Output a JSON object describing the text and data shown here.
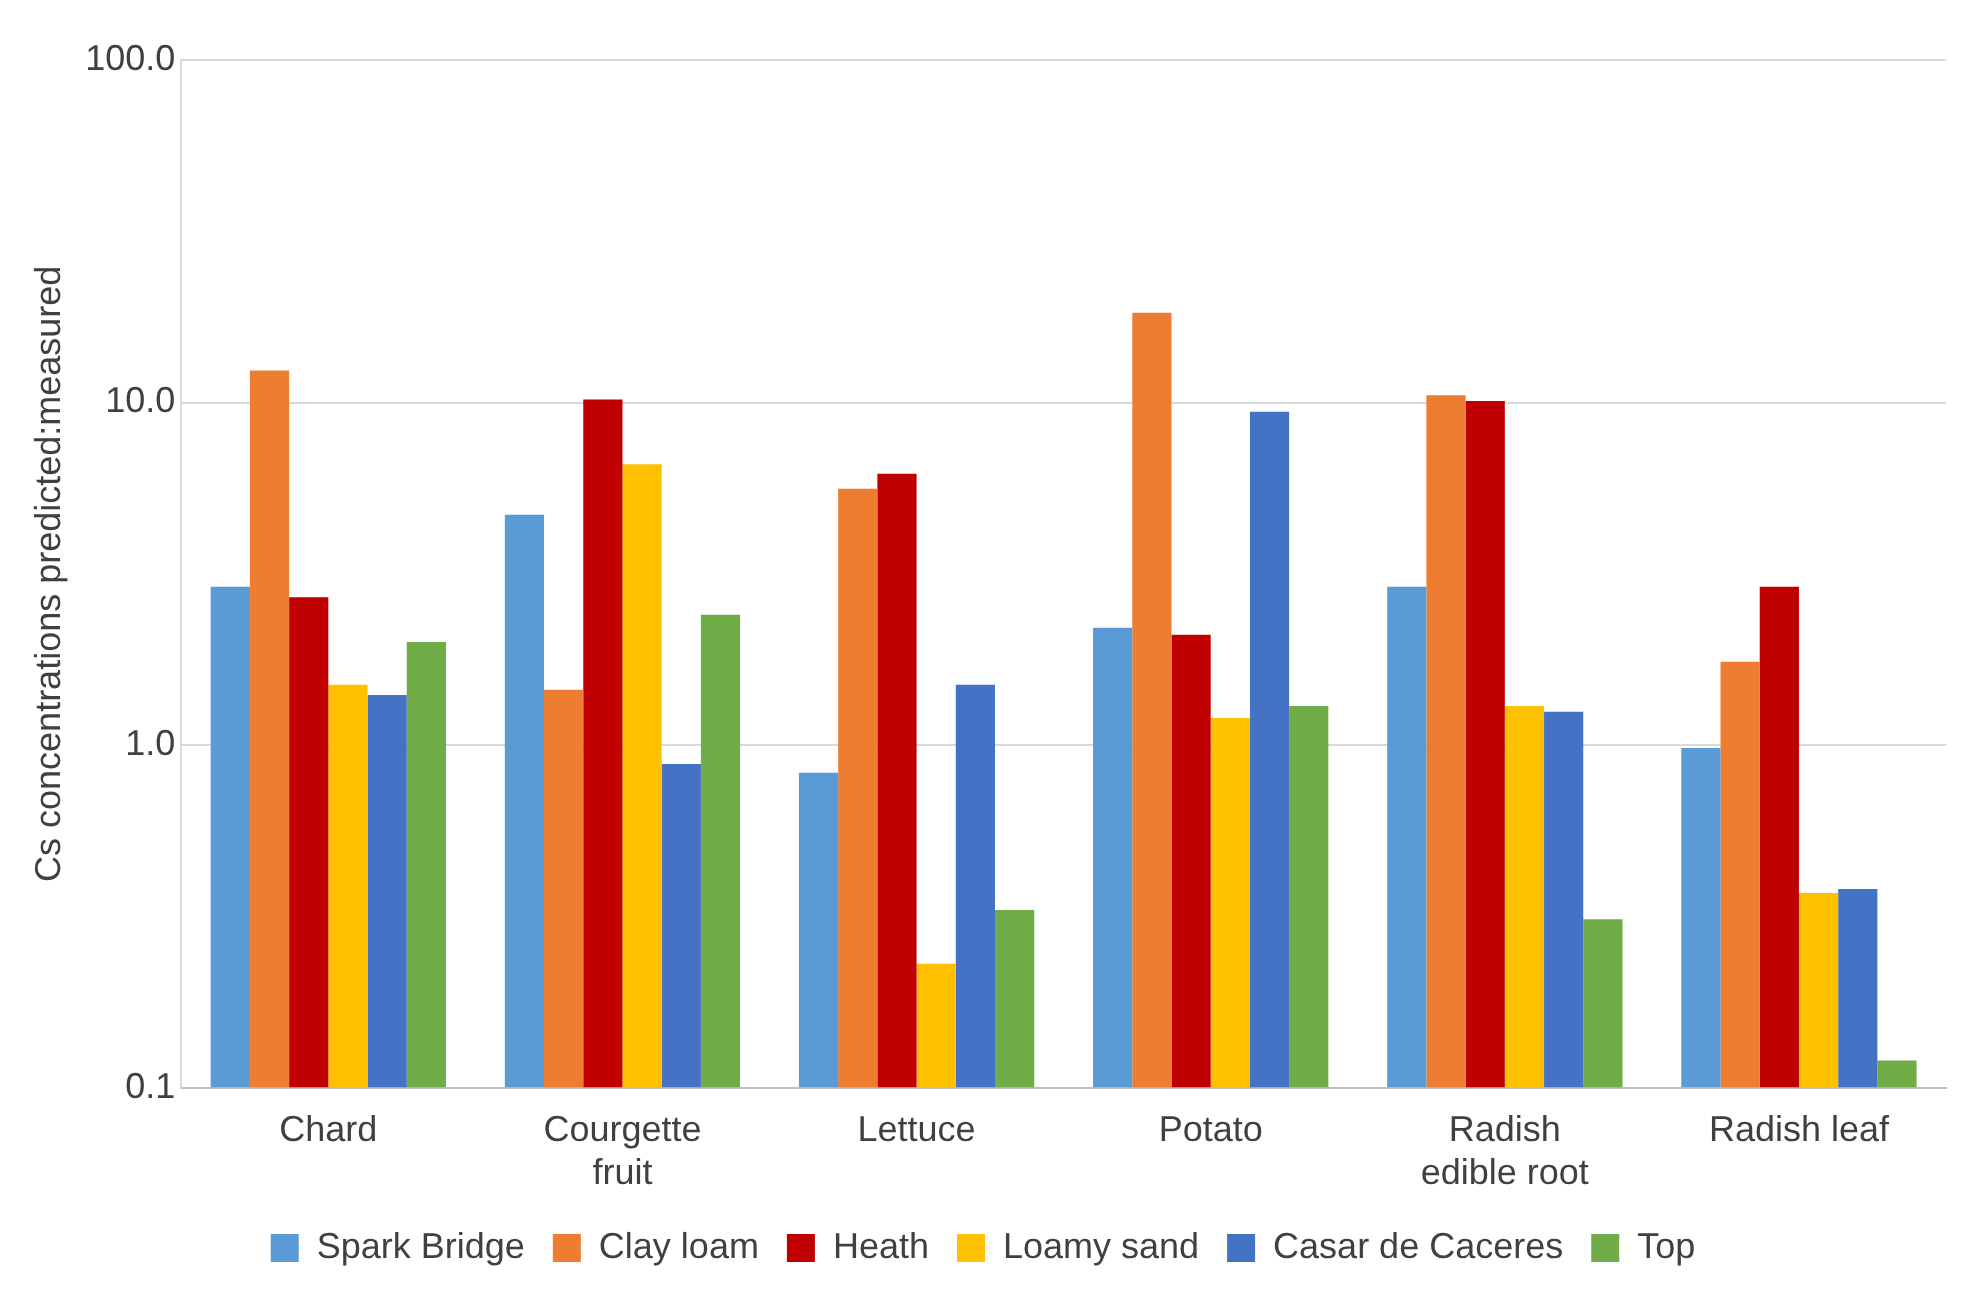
{
  "chart_data": {
    "type": "bar",
    "ylabel": "Cs concentrations predicted:measured",
    "categories": [
      "Chard",
      "Courgette fruit",
      "Lettuce",
      "Potato",
      "Radish edible root",
      "Radish leaf"
    ],
    "series": [
      {
        "name": "Spark Bridge",
        "color": "#5b9bd5",
        "values": [
          2.9,
          4.7,
          0.83,
          2.2,
          2.9,
          0.98
        ]
      },
      {
        "name": "Clay loam",
        "color": "#ed7d31",
        "values": [
          12.4,
          1.45,
          5.6,
          18.3,
          10.5,
          1.75
        ]
      },
      {
        "name": "Heath",
        "color": "#c00000",
        "values": [
          2.7,
          10.2,
          6.2,
          2.1,
          10.1,
          2.9
        ]
      },
      {
        "name": "Loamy sand",
        "color": "#ffc000",
        "values": [
          1.5,
          6.6,
          0.23,
          1.2,
          1.3,
          0.37
        ]
      },
      {
        "name": "Casar de Caceres",
        "color": "#4472c4",
        "values": [
          1.4,
          0.88,
          1.5,
          9.4,
          1.25,
          0.38
        ]
      },
      {
        "name": "Top",
        "color": "#70ad47",
        "values": [
          2.0,
          2.4,
          0.33,
          1.3,
          0.31,
          0.12
        ]
      }
    ],
    "log": "y",
    "ylim": [
      0.1,
      100
    ],
    "yticks": [
      {
        "value": 0.1,
        "label": "0.1"
      },
      {
        "value": 1,
        "label": "1.0"
      },
      {
        "value": 10,
        "label": "10.0"
      },
      {
        "value": 100,
        "label": "100.0"
      }
    ],
    "grid": "y",
    "legend": "bottom"
  }
}
